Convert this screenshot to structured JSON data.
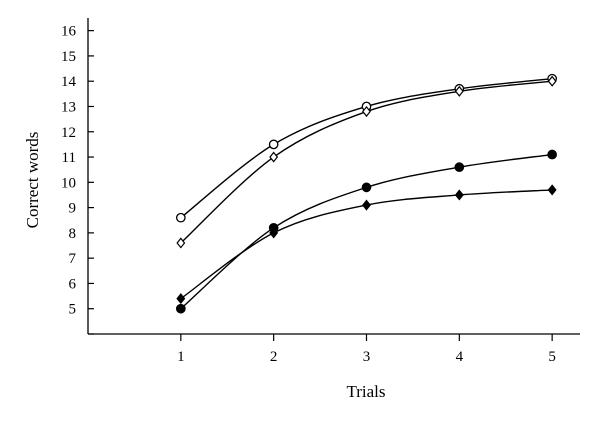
{
  "chart_data": {
    "type": "line",
    "xlabel": "Trials",
    "ylabel": "Correct words",
    "x": [
      1,
      2,
      3,
      4,
      5
    ],
    "xlim": [
      0,
      5.3
    ],
    "ylim": [
      4,
      16.5
    ],
    "x_ticks": [
      1,
      2,
      3,
      4,
      5
    ],
    "y_ticks": [
      5,
      6,
      7,
      8,
      9,
      10,
      11,
      12,
      13,
      14,
      15,
      16
    ],
    "grid": false,
    "legend": "none",
    "series": [
      {
        "marker": "open-circle",
        "values": [
          8.6,
          11.5,
          13.0,
          13.7,
          14.1
        ]
      },
      {
        "marker": "open-diamond",
        "values": [
          7.6,
          11.0,
          12.8,
          13.6,
          14.0
        ]
      },
      {
        "marker": "filled-circle",
        "values": [
          5.0,
          8.2,
          9.8,
          10.6,
          11.1
        ]
      },
      {
        "marker": "filled-diamond",
        "values": [
          5.4,
          8.0,
          9.1,
          9.5,
          9.7
        ]
      }
    ],
    "colors": {
      "line": "#000000",
      "background": "#ffffff"
    }
  }
}
